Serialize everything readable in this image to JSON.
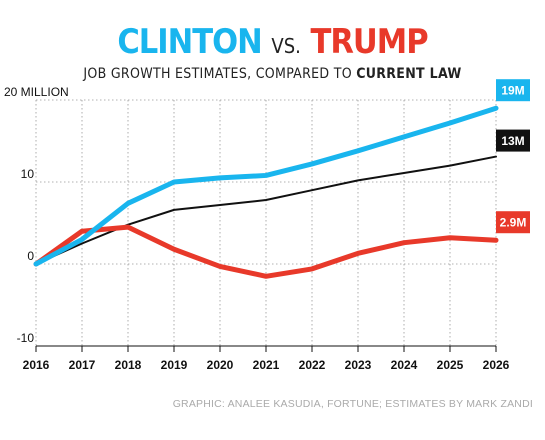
{
  "header": {
    "title_left": "CLINTON",
    "title_vs": "VS.",
    "title_right": "TRUMP",
    "subtitle_main": "JOB GROWTH ESTIMATES, COMPARED TO",
    "subtitle_emph": "CURRENT LAW"
  },
  "colors": {
    "clinton": "#19b5ee",
    "trump": "#e8392a",
    "current_law": "#111111",
    "grid": "#999999"
  },
  "credit": "GRAPHIC: ANALEE KASUDIA, FORTUNE; ESTIMATES BY MARK ZANDI",
  "chart_data": {
    "type": "line",
    "x": [
      2016,
      2017,
      2018,
      2019,
      2020,
      2021,
      2022,
      2023,
      2024,
      2025,
      2026
    ],
    "x_tick_labels": [
      "2016",
      "2017",
      "2018",
      "2019",
      "2020",
      "2021",
      "2022",
      "2023",
      "2024",
      "2025",
      "2026"
    ],
    "ylim": [
      -10,
      20
    ],
    "y_ticks": [
      20,
      10,
      0,
      -10
    ],
    "y_tick_labels": [
      "20 MILLION",
      "10",
      "0",
      "-10"
    ],
    "grid": true,
    "series": [
      {
        "key": "clinton",
        "end_label": "19M",
        "values": [
          0,
          3,
          7.4,
          10,
          10.5,
          10.8,
          12.2,
          13.8,
          15.5,
          17.2,
          19
        ]
      },
      {
        "key": "current_law",
        "end_label": "13M",
        "values": [
          0,
          2.5,
          4.8,
          6.6,
          7.2,
          7.8,
          9,
          10.2,
          11.1,
          12,
          13.1
        ]
      },
      {
        "key": "trump",
        "end_label": "2.9M",
        "values": [
          0,
          4,
          4.5,
          1.8,
          -0.3,
          -1.5,
          -0.6,
          1.3,
          2.6,
          3.2,
          2.9
        ]
      }
    ]
  }
}
